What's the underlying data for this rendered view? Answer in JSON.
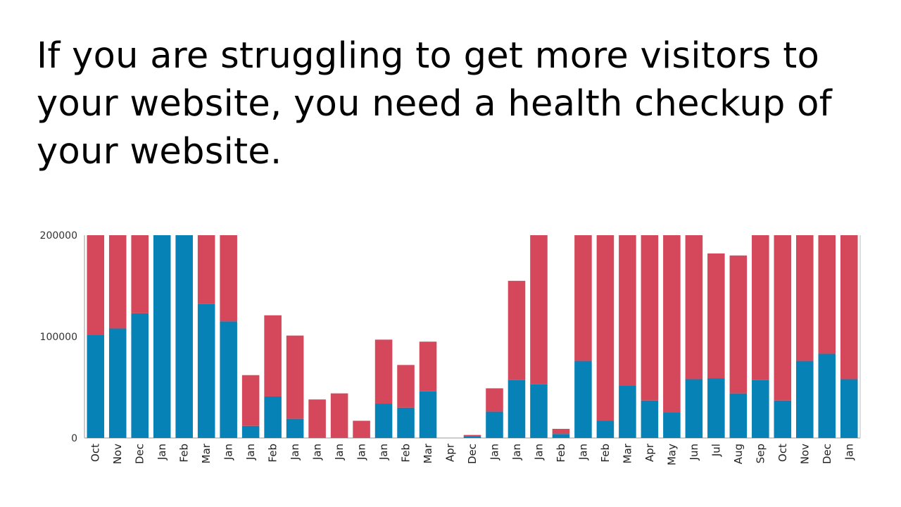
{
  "slide": {
    "title": "If you are struggling to get more visitors to your website, you need a health checkup of your website."
  },
  "chart_data": {
    "type": "bar",
    "stacked": true,
    "ylim": [
      0,
      200000
    ],
    "yticks": [
      {
        "value": 0,
        "label": "0"
      },
      {
        "value": 100000,
        "label": "100000"
      },
      {
        "value": 200000,
        "label": "200000"
      }
    ],
    "categories": [
      "Oct",
      "Nov",
      "Dec",
      "Jan",
      "Feb",
      "Mar",
      "Jan",
      "Jan",
      "Feb",
      "Jan",
      "Jan",
      "Jan",
      "Jan",
      "Jan",
      "Feb",
      "Mar",
      "Apr",
      "Dec",
      "Jan",
      "Jan",
      "Jan",
      "Feb",
      "Jan",
      "Feb",
      "Mar",
      "Apr",
      "May",
      "Jun",
      "Jul",
      "Aug",
      "Sep",
      "Oct",
      "Nov",
      "Dec",
      "Jan"
    ],
    "series": [
      {
        "color": "#0782b6",
        "values": [
          102000,
          108000,
          123000,
          200000,
          200000,
          132000,
          115000,
          12000,
          41000,
          19000,
          0,
          0,
          0,
          34000,
          30000,
          46000,
          0,
          2000,
          26000,
          57000,
          53000,
          4000,
          76000,
          17000,
          52000,
          37000,
          25000,
          58000,
          59000,
          44000,
          57000,
          37000,
          76000,
          83000,
          58000
        ]
      },
      {
        "color": "#d5475a",
        "values": [
          98000,
          92000,
          77000,
          0,
          0,
          68000,
          85000,
          50000,
          80000,
          82000,
          38000,
          44000,
          17000,
          63000,
          42000,
          49000,
          0,
          1000,
          23000,
          98000,
          147000,
          5000,
          124000,
          183000,
          148000,
          163000,
          175000,
          142000,
          123000,
          136000,
          143000,
          163000,
          124000,
          117000,
          142000
        ]
      }
    ]
  }
}
